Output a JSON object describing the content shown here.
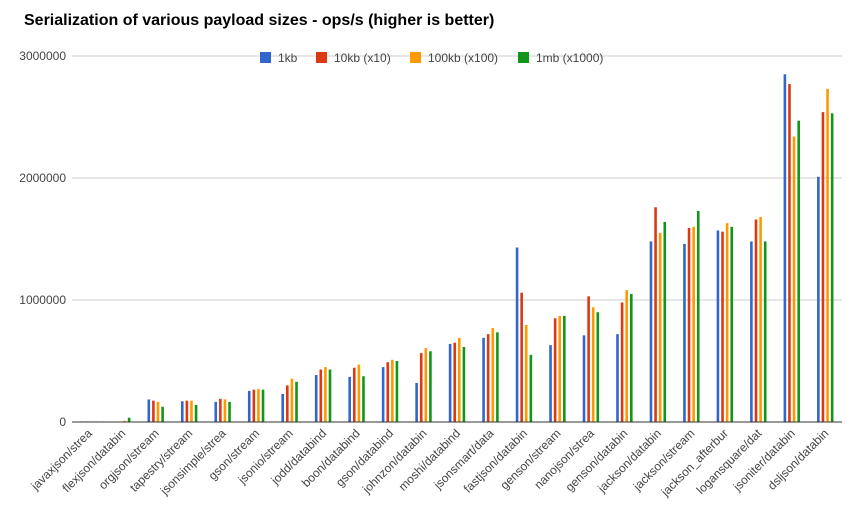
{
  "chart_data": {
    "type": "bar",
    "title": "Serialization of various payload sizes - ops/s (higher is better)",
    "xlabel": "",
    "ylabel": "",
    "ylim": [
      0,
      3000000
    ],
    "yticks": [
      0,
      1000000,
      2000000,
      3000000
    ],
    "ytick_labels": [
      "0",
      "1000000",
      "2000000",
      "3000000"
    ],
    "grid": "horizontal",
    "legend_position": "top",
    "categories": [
      "javaxjson/strea",
      "flexjson/databin",
      "orgjson/stream",
      "tapestry/stream",
      "jsonsimple/strea",
      "gson/stream",
      "jsonio/stream",
      "jodd/databind",
      "boon/databind",
      "gson/databind",
      "johnzon/databin",
      "moshi/databind",
      "jsonsmart/data",
      "fastjson/databin",
      "genson/stream",
      "nanojson/strea",
      "genson/databin",
      "jackson/databin",
      "jackson/stream",
      "jackson_afterbur",
      "logansquare/dat",
      "jsoniter/databin",
      "dsljson/databin"
    ],
    "series": [
      {
        "name": "1kb",
        "color": "#3366cc",
        "values": [
          5000,
          2000,
          185000,
          170000,
          165000,
          255000,
          230000,
          385000,
          370000,
          450000,
          320000,
          640000,
          690000,
          1430000,
          630000,
          710000,
          720000,
          1480000,
          1460000,
          1570000,
          1480000,
          2850000,
          2010000
        ]
      },
      {
        "name": "10kb (x10)",
        "color": "#dc3912",
        "values": [
          5000,
          3000,
          175000,
          175000,
          190000,
          265000,
          300000,
          430000,
          445000,
          490000,
          565000,
          650000,
          720000,
          1060000,
          850000,
          1030000,
          980000,
          1760000,
          1590000,
          1560000,
          1660000,
          2770000,
          2540000
        ]
      },
      {
        "name": "100kb (x100)",
        "color": "#ff9900",
        "values": [
          5000,
          10000,
          165000,
          175000,
          185000,
          270000,
          355000,
          450000,
          470000,
          510000,
          605000,
          690000,
          770000,
          795000,
          870000,
          940000,
          1080000,
          1550000,
          1600000,
          1630000,
          1680000,
          2340000,
          2730000
        ]
      },
      {
        "name": "1mb (x1000)",
        "color": "#109618",
        "values": [
          5000,
          35000,
          125000,
          140000,
          165000,
          265000,
          330000,
          430000,
          375000,
          500000,
          580000,
          615000,
          735000,
          550000,
          870000,
          900000,
          1050000,
          1640000,
          1730000,
          1600000,
          1480000,
          2470000,
          2530000
        ]
      }
    ]
  }
}
